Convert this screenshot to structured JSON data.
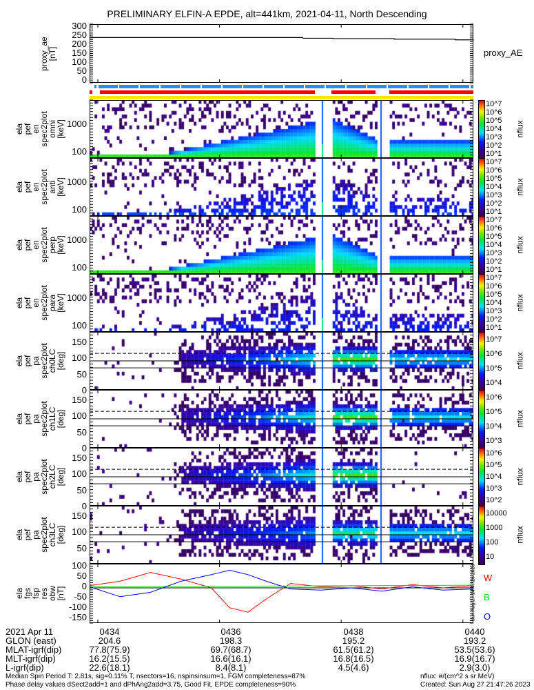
{
  "title": "PRELIMINARY ELFIN-A EPDE, alt=441km, 2021-04-11, North Descending",
  "proxy": {
    "ylabel_1": "proxy_ae",
    "ylabel_2": "[nT]",
    "legend": "proxy_AE",
    "ticks": [
      "300",
      "250",
      "200",
      "150",
      "100",
      "50",
      "0"
    ]
  },
  "panels": [
    {
      "id": "omni",
      "label": "ela\npef\nen\nspec2plot\nomni\n[keV]",
      "ticks": [
        "1000",
        "100"
      ],
      "cbar": [
        "10^7",
        "10^6",
        "10^5",
        "10^4",
        "10^3",
        "10^2",
        "10^1"
      ],
      "cbar_title": "nflux"
    },
    {
      "id": "anti",
      "label": "ela\npef\nen\nspec2plot\nanti\n[keV]",
      "ticks": [
        "1000",
        "100"
      ],
      "cbar": [
        "10^7",
        "10^6",
        "10^5",
        "10^4",
        "10^3",
        "10^2",
        "10^1"
      ],
      "cbar_title": "nflux"
    },
    {
      "id": "perp",
      "label": "ela\npef\nen\nspec2plot\nperp\n[keV]",
      "ticks": [
        "1000",
        "100"
      ],
      "cbar": [
        "10^7",
        "10^6",
        "10^5",
        "10^4",
        "10^3",
        "10^2",
        "10^1"
      ],
      "cbar_title": "nflux"
    },
    {
      "id": "para",
      "label": "ela\npef\nen\nspec2plot\npara\n[keV]",
      "ticks": [
        "1000",
        "100"
      ],
      "cbar": [
        "10^7",
        "10^6",
        "10^5",
        "10^4",
        "10^3",
        "10^2",
        "10^1"
      ],
      "cbar_title": "nflux"
    },
    {
      "id": "ch0LC",
      "label": "ela\npef\npa\nspec2plot\nch0LC\n[deg]",
      "ticks": [
        "150",
        "100",
        "50",
        "0"
      ],
      "cbar": [
        "10^7",
        "10^6",
        "10^5",
        "10^4"
      ],
      "cbar_title": "nflux"
    },
    {
      "id": "ch1LC",
      "label": "ela\npef\npa\nspec2plot\nch1LC\n[deg]",
      "ticks": [
        "150",
        "100",
        "50",
        "0"
      ],
      "cbar": [
        "10^6",
        "10^5",
        "10^4",
        "10^3"
      ],
      "cbar_title": "nflux"
    },
    {
      "id": "ch2LC",
      "label": "ela\npef\npa\nspec2plot\nch2LC\n[deg]",
      "ticks": [
        "150",
        "100",
        "50",
        "0"
      ],
      "cbar": [
        "10^6",
        "10^5",
        "10^4",
        "10^3",
        "10^2"
      ],
      "cbar_title": "nflux"
    },
    {
      "id": "ch3LC",
      "label": "ela\npef\npa\nspec2plot\nch3LC\n[deg]",
      "ticks": [
        "150",
        "100",
        "50"
      ],
      "cbar": [
        "10000",
        "1000",
        "100",
        "10"
      ],
      "cbar_title": "nflux"
    }
  ],
  "fgs": {
    "label": "ela\nfgs\nfsp\nres\nobw\n[nT]",
    "ticks": [
      "100",
      "50",
      "0",
      "-50",
      "-100",
      "-150"
    ],
    "legend": [
      "W",
      "B",
      "O"
    ],
    "side_stamp": "Sun Aug 27 14:47:26 2023"
  },
  "footer_rows": [
    [
      "2021 Apr 11",
      "0434",
      "0436",
      "0438",
      "0440"
    ],
    [
      "GLON (east)",
      "204.6",
      "198.3",
      "195.2",
      "193.2"
    ],
    [
      "MLAT-igrf(dip)",
      "77.8(75.9)",
      "69.7(68.7)",
      "61.5(61.2)",
      "53.5(53.6)"
    ],
    [
      "MLT-igrf(dip)",
      "16.2(15.5)",
      "16.6(16.1)",
      "16.8(16.5)",
      "16.9(16.7)"
    ],
    [
      "L-igrf(dip)",
      "22.6(18.1)",
      "8.4(8.1)",
      "4.5(4.6)",
      "2.9(3.0)"
    ]
  ],
  "notes": {
    "line1": "Median Spin Period T: 2.81s, sig=0.11% T, nsectors=16, nspinsinsum=1, FGM completeness=87%",
    "line2": "Phase delay values dSect2add=1 and dPhAng2add=3.75, Good Fit, EPDE completeness=90%",
    "units": "nflux: #/(cm^2 s sr MeV)",
    "created": "Created: Sun Aug 27 21:47:26 2023"
  },
  "colors": {
    "blue_bar": "#1e90ff",
    "red_bar": "#ff0000",
    "yellow_bar": "#ffe600",
    "W": "#ff0000",
    "B": "#00dd00",
    "O": "#0000ff"
  },
  "chart_data": {
    "type": "heatmap",
    "x_range_minutes": [
      "04:33.9",
      "04:40.2"
    ],
    "proxy_ae": {
      "x_min": [
        0,
        1,
        2,
        3,
        3.5,
        4,
        4.5,
        5,
        5.5,
        6,
        6.3
      ],
      "y": [
        237,
        237,
        237,
        237,
        233,
        231,
        231,
        228,
        228,
        224,
        220
      ],
      "ylim": [
        0,
        300
      ]
    },
    "energy_ylim_keV": [
      50,
      7000
    ],
    "pa_ylim_deg": [
      0,
      180
    ],
    "fgs": {
      "ylim": [
        -150,
        100
      ],
      "series": [
        {
          "name": "W",
          "color": "#ff0000",
          "x_min": [
            0,
            0.5,
            1,
            1.5,
            2,
            2.3,
            2.6,
            2.9,
            3.3,
            3.8,
            4.3,
            4.8,
            5.3,
            5.8,
            6.3
          ],
          "y": [
            10,
            30,
            70,
            40,
            0,
            -90,
            -110,
            -50,
            20,
            5,
            10,
            -5,
            15,
            0,
            10
          ]
        },
        {
          "name": "B",
          "color": "#00dd00",
          "x_min": [
            0,
            6.3
          ],
          "y": [
            5,
            12
          ]
        },
        {
          "name": "O",
          "color": "#0000ff",
          "x_min": [
            0,
            0.5,
            1,
            1.5,
            2,
            2.3,
            2.6,
            2.9,
            3.3,
            3.8,
            4.3,
            4.8,
            5.3,
            5.8,
            6.3
          ],
          "y": [
            5,
            -40,
            -20,
            30,
            60,
            80,
            60,
            30,
            -5,
            -10,
            0,
            -15,
            5,
            -10,
            -5
          ]
        }
      ]
    }
  }
}
